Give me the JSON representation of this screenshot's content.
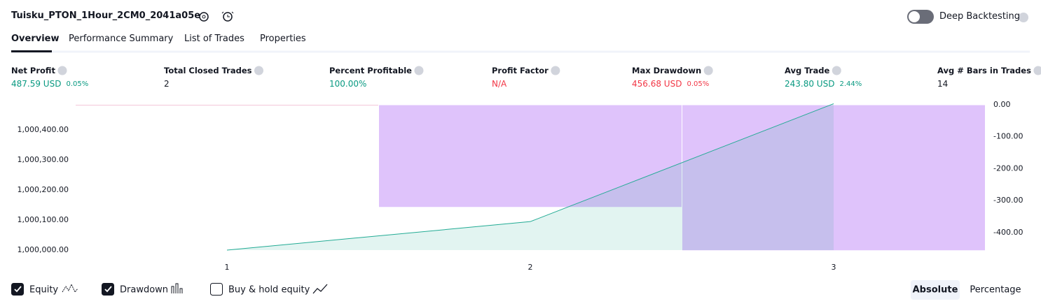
{
  "header": {
    "title": "Tuisku_PTON_1Hour_2CM0_2041a05e",
    "toggle_label": "Deep Backtesting",
    "toggle_on": false
  },
  "tabs": {
    "items": [
      "Overview",
      "Performance Summary",
      "List of Trades",
      "Properties"
    ],
    "active": 0
  },
  "metrics": [
    {
      "label": "Net Profit",
      "value": "487.59 USD",
      "percent": "0.05%",
      "color": "#089981"
    },
    {
      "label": "Total Closed Trades",
      "value": "2",
      "color": "#131722"
    },
    {
      "label": "Percent Profitable",
      "value": "100.00%",
      "color": "#089981"
    },
    {
      "label": "Profit Factor",
      "value": "N/A",
      "color": "#f23645"
    },
    {
      "label": "Max Drawdown",
      "value": "456.68 USD",
      "percent": "0.05%",
      "color": "#f23645"
    },
    {
      "label": "Avg Trade",
      "value": "243.80 USD",
      "percent": "2.44%",
      "color": "#089981"
    },
    {
      "label": "Avg # Bars in Trades",
      "value": "14",
      "color": "#131722"
    }
  ],
  "chart_data": {
    "type": "line",
    "categories": [
      "1",
      "2",
      "3"
    ],
    "series": [
      {
        "name": "Equity",
        "color": "#22ab94",
        "values": [
          1000000,
          1000095,
          1000487.59
        ]
      },
      {
        "name": "Drawdown",
        "color": "#dfc3fb",
        "axis": "y2",
        "values": [
          0,
          -321,
          -456.68
        ]
      }
    ],
    "ylim": [
      1000000,
      1000484
    ],
    "yticks": [
      {
        "value": 1000000,
        "label": "1,000,000.00"
      },
      {
        "value": 1000100,
        "label": "1,000,100.00"
      },
      {
        "value": 1000200,
        "label": "1,000,200.00"
      },
      {
        "value": 1000300,
        "label": "1,000,300.00"
      },
      {
        "value": 1000400,
        "label": "1,000,400.00"
      }
    ],
    "y2lim": [
      -455,
      0
    ],
    "y2ticks": [
      {
        "value": 0,
        "label": "0.00"
      },
      {
        "value": -100,
        "label": "-100.00"
      },
      {
        "value": -200,
        "label": "-200.00"
      },
      {
        "value": -300,
        "label": "-300.00"
      },
      {
        "value": -400,
        "label": "-400.00"
      }
    ]
  },
  "legend": [
    {
      "label": "Equity",
      "checked": true
    },
    {
      "label": "Drawdown",
      "checked": true
    },
    {
      "label": "Buy & hold equity",
      "checked": false
    }
  ],
  "view_modes": {
    "items": [
      "Absolute",
      "Percentage"
    ],
    "active": 0
  }
}
